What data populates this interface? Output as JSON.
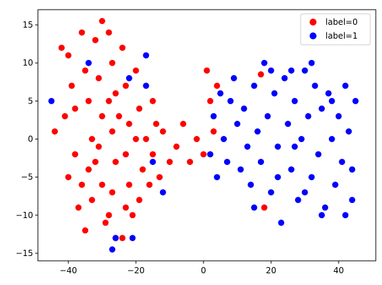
{
  "chart_data": {
    "type": "scatter",
    "title": "",
    "xlabel": "",
    "ylabel": "",
    "xlim": [
      -49,
      51
    ],
    "ylim": [
      -16,
      17
    ],
    "xticks": [
      -40,
      -20,
      0,
      20,
      40
    ],
    "yticks": [
      -15,
      -10,
      -5,
      0,
      5,
      10,
      15
    ],
    "grid": false,
    "legend_position": "top-right",
    "series": [
      {
        "name": "label=0",
        "color": "#ff0000",
        "points": [
          [
            -44,
            1
          ],
          [
            -42,
            12
          ],
          [
            -40,
            11
          ],
          [
            -39,
            7
          ],
          [
            -41,
            3
          ],
          [
            -38,
            -2
          ],
          [
            -40,
            -5
          ],
          [
            -37,
            -9
          ],
          [
            -36,
            14
          ],
          [
            -35,
            9
          ],
          [
            -34,
            5
          ],
          [
            -33,
            0
          ],
          [
            -34,
            -4
          ],
          [
            -33,
            -8
          ],
          [
            -35,
            -12
          ],
          [
            -32,
            13
          ],
          [
            -31,
            8
          ],
          [
            -30,
            3
          ],
          [
            -31,
            -1
          ],
          [
            -30,
            -6
          ],
          [
            -29,
            -11
          ],
          [
            -30,
            15.5
          ],
          [
            -28,
            14
          ],
          [
            -27,
            10
          ],
          [
            -26,
            6
          ],
          [
            -27,
            1
          ],
          [
            -26,
            -3
          ],
          [
            -27,
            -7
          ],
          [
            -28,
            -10
          ],
          [
            -26,
            -13
          ],
          [
            -24,
            12
          ],
          [
            -23,
            7
          ],
          [
            -22,
            2
          ],
          [
            -23,
            -2
          ],
          [
            -22,
            -6
          ],
          [
            -23,
            -9
          ],
          [
            -24,
            -13
          ],
          [
            -20,
            9
          ],
          [
            -19,
            4
          ],
          [
            -20,
            0
          ],
          [
            -18,
            -4
          ],
          [
            -19,
            -8
          ],
          [
            -15,
            5
          ],
          [
            -14,
            2
          ],
          [
            -15,
            -2
          ],
          [
            -13,
            -5
          ],
          [
            -12,
            1
          ],
          [
            -10,
            -3
          ],
          [
            -8,
            -1
          ],
          [
            -6,
            2
          ],
          [
            -4,
            -3
          ],
          [
            -2,
            0
          ],
          [
            0,
            -2
          ],
          [
            1,
            9
          ],
          [
            2,
            5
          ],
          [
            3,
            1
          ],
          [
            4,
            7
          ],
          [
            -38,
            4
          ],
          [
            -36,
            -6
          ],
          [
            -32,
            -3
          ],
          [
            -28,
            5
          ],
          [
            -25,
            3
          ],
          [
            -21,
            -10
          ],
          [
            -17,
            0
          ],
          [
            -16,
            -6
          ],
          [
            17,
            8.5
          ],
          [
            18,
            -9
          ]
        ]
      },
      {
        "name": "label=1",
        "color": "#0000ff",
        "points": [
          [
            -45,
            5
          ],
          [
            -34,
            10
          ],
          [
            -22,
            8
          ],
          [
            -17,
            11
          ],
          [
            -17,
            7
          ],
          [
            -15,
            -3
          ],
          [
            -12,
            -7
          ],
          [
            -26,
            -13
          ],
          [
            -21,
            -13
          ],
          [
            -27,
            -14.5
          ],
          [
            2,
            -2
          ],
          [
            3,
            3
          ],
          [
            4,
            -5
          ],
          [
            5,
            6
          ],
          [
            6,
            0
          ],
          [
            7,
            -3
          ],
          [
            8,
            5
          ],
          [
            9,
            8
          ],
          [
            10,
            2
          ],
          [
            11,
            -4
          ],
          [
            12,
            4
          ],
          [
            13,
            -1
          ],
          [
            14,
            -6
          ],
          [
            15,
            7
          ],
          [
            16,
            1
          ],
          [
            17,
            -3
          ],
          [
            18,
            10
          ],
          [
            19,
            3
          ],
          [
            20,
            -7
          ],
          [
            21,
            6
          ],
          [
            22,
            -1
          ],
          [
            23,
            -11
          ],
          [
            24,
            8
          ],
          [
            25,
            2
          ],
          [
            26,
            -4
          ],
          [
            27,
            5
          ],
          [
            28,
            -8
          ],
          [
            29,
            0
          ],
          [
            30,
            9
          ],
          [
            31,
            3
          ],
          [
            32,
            -5
          ],
          [
            33,
            7
          ],
          [
            34,
            -2
          ],
          [
            35,
            4
          ],
          [
            36,
            -9
          ],
          [
            37,
            6
          ],
          [
            38,
            0
          ],
          [
            39,
            -6
          ],
          [
            40,
            3
          ],
          [
            41,
            -3
          ],
          [
            42,
            7
          ],
          [
            43,
            1
          ],
          [
            44,
            -4
          ],
          [
            45,
            5
          ],
          [
            44,
            -8
          ],
          [
            42,
            -10
          ],
          [
            32,
            10
          ],
          [
            26,
            9
          ],
          [
            20,
            9
          ],
          [
            15,
            -9
          ],
          [
            22,
            -5
          ],
          [
            30,
            -7
          ],
          [
            35,
            -10
          ],
          [
            38,
            5
          ],
          [
            27,
            -1
          ]
        ]
      }
    ]
  }
}
